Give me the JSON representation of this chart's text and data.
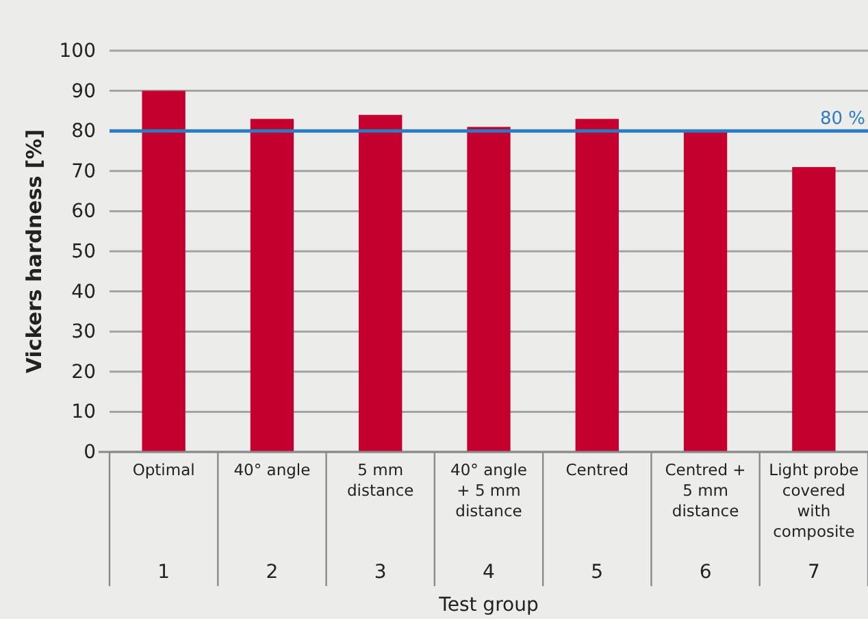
{
  "chart_data": {
    "type": "bar",
    "ylabel": "Vickers hardness [%]",
    "xlabel": "Test group",
    "categories": [
      "Optimal",
      "40° angle",
      "5 mm distance",
      "40° angle + 5 mm distance",
      "Centred",
      "Centred + 5 mm distance",
      "Light probe covered with composite"
    ],
    "values": [
      90,
      83,
      84,
      81,
      83,
      80,
      71
    ],
    "color": "#c4002f",
    "ylim": [
      0,
      100
    ],
    "yticks": [
      0,
      10,
      20,
      30,
      40,
      50,
      60,
      70,
      80,
      90,
      100
    ],
    "grid": "y",
    "ref_lines": [
      {
        "axis": "y",
        "value": 80,
        "label": "80 %",
        "color": "#2e7bbf"
      }
    ],
    "annotations": [
      "1",
      "2",
      "3",
      "4",
      "5",
      "6",
      "7"
    ]
  }
}
